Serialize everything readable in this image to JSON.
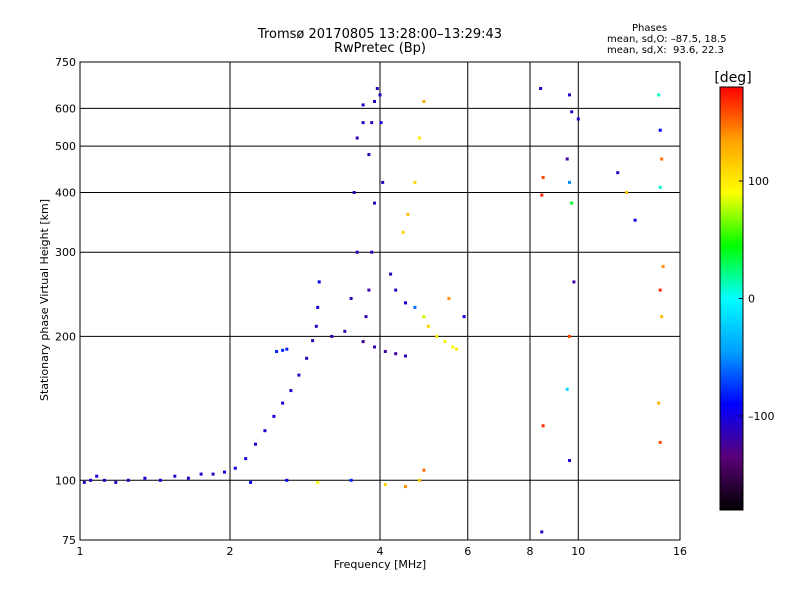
{
  "header": {
    "title_line1": "Tromsø 20170805 13:28:00–13:29:43",
    "title_line2": "RwPretec (Bp)",
    "phase_heading": "Phases",
    "phase_o": "mean, sd,O: –87.5, 18.5",
    "phase_x": "mean, sd,X:  93.6, 22.3"
  },
  "colorbar": {
    "label": "[deg]",
    "ticks": [
      "100",
      "0",
      "–100"
    ],
    "range": [
      -180,
      180
    ],
    "colors": [
      "#000000",
      "#5a0078",
      "#0000ff",
      "#00a0ff",
      "#00ffff",
      "#00ff00",
      "#ffff00",
      "#ffa000",
      "#ff0000"
    ]
  },
  "chart_data": {
    "type": "scatter",
    "title": "Tromsø 20170805 13:28:00–13:29:43",
    "subtitle": "RwPretec (Bp)",
    "xlabel": "Frequency [MHz]",
    "ylabel": "Stationary phase Virtual Height [km]",
    "x_scale": "log",
    "y_scale": "log",
    "xlim": [
      1,
      16
    ],
    "ylim": [
      75,
      750
    ],
    "x_ticks": [
      1,
      2,
      4,
      6,
      8,
      10,
      16
    ],
    "x_tick_labels": [
      "1",
      "2",
      "4",
      "6",
      "8",
      "10",
      "16"
    ],
    "y_ticks": [
      75,
      100,
      200,
      300,
      400,
      500,
      600,
      750
    ],
    "y_tick_labels": [
      "75",
      "100",
      "200",
      "300",
      "400",
      "500",
      "600",
      "750"
    ],
    "grid": true,
    "color_by": "phase [deg]",
    "series": [
      {
        "values": [
          [
            1.02,
            99,
            -110
          ],
          [
            1.05,
            100,
            -105
          ],
          [
            1.08,
            102,
            -100
          ],
          [
            1.12,
            100,
            -108
          ],
          [
            1.18,
            99,
            -112
          ],
          [
            1.25,
            100,
            -110
          ],
          [
            1.35,
            101,
            -105
          ],
          [
            1.45,
            100,
            -100
          ],
          [
            1.55,
            102,
            -108
          ],
          [
            1.65,
            101,
            -110
          ],
          [
            1.75,
            103,
            -105
          ],
          [
            1.85,
            103,
            -110
          ],
          [
            1.95,
            104,
            -100
          ],
          [
            2.05,
            106,
            -98
          ],
          [
            2.15,
            111,
            -100
          ],
          [
            2.25,
            119,
            -105
          ],
          [
            2.35,
            127,
            -102
          ],
          [
            2.45,
            136,
            -100
          ],
          [
            2.55,
            145,
            -105
          ],
          [
            2.65,
            154,
            -108
          ],
          [
            2.75,
            166,
            -110
          ],
          [
            2.85,
            180,
            -112
          ],
          [
            2.93,
            196,
            -115
          ],
          [
            2.98,
            210,
            -110
          ],
          [
            3.0,
            230,
            -100
          ],
          [
            3.02,
            260,
            -95
          ],
          [
            2.48,
            186,
            -80
          ],
          [
            2.55,
            187,
            -80
          ],
          [
            2.6,
            188,
            -82
          ],
          [
            3.2,
            200,
            -118
          ],
          [
            3.4,
            205,
            -115
          ],
          [
            3.5,
            240,
            -112
          ],
          [
            3.6,
            300,
            -115
          ],
          [
            3.55,
            400,
            -112
          ],
          [
            3.6,
            520,
            -115
          ],
          [
            3.7,
            560,
            -110
          ],
          [
            3.7,
            610,
            -108
          ],
          [
            3.8,
            480,
            -112
          ],
          [
            3.85,
            560,
            -115
          ],
          [
            3.9,
            620,
            -110
          ],
          [
            3.95,
            660,
            -112
          ],
          [
            4.0,
            640,
            -108
          ],
          [
            4.02,
            560,
            -105
          ],
          [
            4.05,
            420,
            -110
          ],
          [
            3.9,
            380,
            -112
          ],
          [
            3.85,
            300,
            -115
          ],
          [
            3.8,
            250,
            -118
          ],
          [
            3.75,
            220,
            -115
          ],
          [
            3.7,
            195,
            -120
          ],
          [
            3.9,
            190,
            -118
          ],
          [
            4.1,
            186,
            -120
          ],
          [
            4.3,
            184,
            -118
          ],
          [
            4.5,
            182,
            -115
          ],
          [
            4.2,
            270,
            -112
          ],
          [
            4.3,
            250,
            -110
          ],
          [
            4.5,
            235,
            -100
          ],
          [
            4.7,
            230,
            -60
          ],
          [
            4.9,
            220,
            80
          ],
          [
            5.0,
            210,
            110
          ],
          [
            5.2,
            200,
            100
          ],
          [
            5.4,
            195,
            95
          ],
          [
            5.6,
            190,
            90
          ],
          [
            5.7,
            188,
            100
          ],
          [
            4.45,
            330,
            110
          ],
          [
            4.55,
            360,
            120
          ],
          [
            4.7,
            420,
            110
          ],
          [
            4.8,
            520,
            100
          ],
          [
            4.9,
            620,
            130
          ],
          [
            5.5,
            240,
            140
          ],
          [
            5.9,
            220,
            -100
          ],
          [
            2.2,
            99,
            -90
          ],
          [
            2.6,
            100,
            -95
          ],
          [
            3.0,
            99,
            90
          ],
          [
            3.5,
            100,
            -80
          ],
          [
            4.1,
            98,
            110
          ],
          [
            4.5,
            97,
            140
          ],
          [
            4.8,
            100,
            120
          ],
          [
            4.9,
            105,
            150
          ],
          [
            8.4,
            660,
            -110
          ],
          [
            8.5,
            430,
            160
          ],
          [
            8.45,
            395,
            170
          ],
          [
            8.5,
            130,
            170
          ],
          [
            8.45,
            78,
            -110
          ],
          [
            9.6,
            640,
            -110
          ],
          [
            9.7,
            590,
            -108
          ],
          [
            9.5,
            470,
            -120
          ],
          [
            9.6,
            420,
            -50
          ],
          [
            9.7,
            380,
            40
          ],
          [
            9.6,
            200,
            160
          ],
          [
            9.5,
            155,
            -20
          ],
          [
            9.6,
            110,
            -105
          ],
          [
            9.8,
            260,
            -120
          ],
          [
            10.0,
            570,
            -100
          ],
          [
            12.0,
            440,
            -110
          ],
          [
            12.5,
            400,
            120
          ],
          [
            13.0,
            350,
            -100
          ],
          [
            14.5,
            640,
            10
          ],
          [
            14.6,
            540,
            -90
          ],
          [
            14.7,
            470,
            150
          ],
          [
            14.6,
            410,
            10
          ],
          [
            14.8,
            280,
            140
          ],
          [
            14.6,
            250,
            170
          ],
          [
            14.7,
            220,
            120
          ],
          [
            14.5,
            145,
            130
          ],
          [
            14.6,
            120,
            160
          ]
        ]
      }
    ]
  }
}
